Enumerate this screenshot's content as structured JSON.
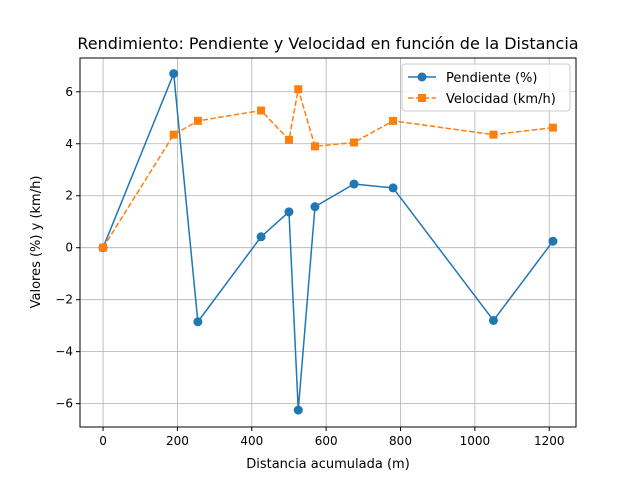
{
  "chart_data": {
    "type": "line",
    "title": "Rendimiento: Pendiente y Velocidad en función de la Distancia",
    "xlabel": "Distancia acumulada (m)",
    "ylabel": "Valores (%) y (km/h)",
    "xlim": [
      -62,
      1272
    ],
    "ylim": [
      -6.9,
      7.3
    ],
    "xticks": [
      0,
      200,
      400,
      600,
      800,
      1000,
      1200
    ],
    "yticks": [
      -6,
      -4,
      -2,
      0,
      2,
      4,
      6
    ],
    "x_tick_labels": [
      "0",
      "200",
      "400",
      "600",
      "800",
      "1000",
      "1200"
    ],
    "y_tick_labels": [
      "−6",
      "−4",
      "−2",
      "0",
      "2",
      "4",
      "6"
    ],
    "grid": true,
    "legend_position": "top-right",
    "series": [
      {
        "name": "Pendiente (%)",
        "color": "#1f77b4",
        "marker": "circle",
        "line_style": "solid",
        "x": [
          0,
          190,
          255,
          425,
          500,
          525,
          570,
          675,
          780,
          1050,
          1210
        ],
        "y": [
          0,
          6.7,
          -2.85,
          0.42,
          1.38,
          -6.25,
          1.58,
          2.45,
          2.3,
          -2.8,
          0.25
        ]
      },
      {
        "name": "Velocidad (km/h)",
        "color": "#ff7f0e",
        "marker": "square",
        "line_style": "dashed",
        "x": [
          0,
          190,
          255,
          425,
          500,
          525,
          570,
          675,
          780,
          1050,
          1210
        ],
        "y": [
          0,
          4.35,
          4.88,
          5.28,
          4.15,
          6.1,
          3.9,
          4.05,
          4.88,
          4.35,
          4.62
        ]
      }
    ]
  }
}
